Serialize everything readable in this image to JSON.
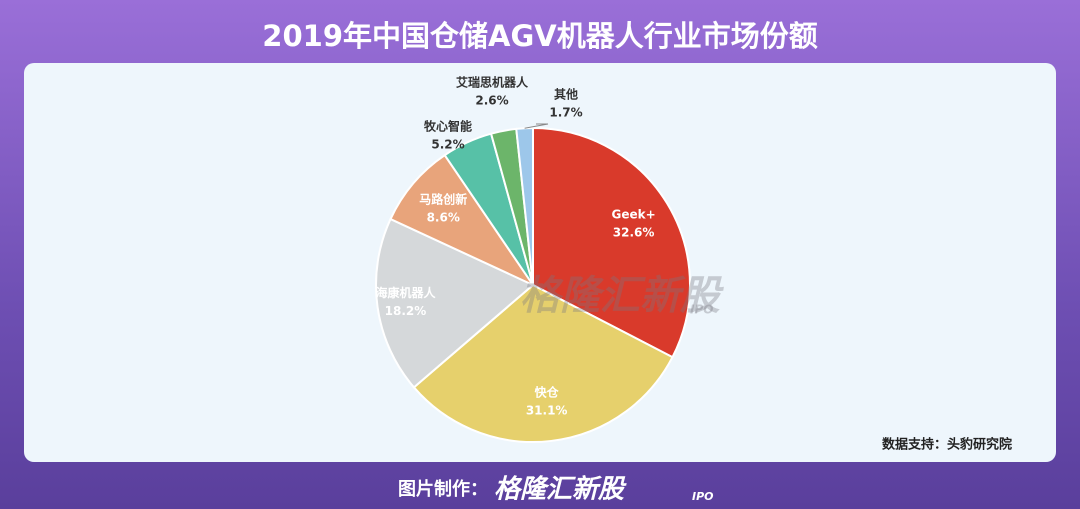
{
  "chart_data": {
    "type": "pie",
    "title": "2019年中国仓储AGV机器人行业市场份额",
    "categories": [
      "Geek+",
      "快仓",
      "海康机器人",
      "马路创新",
      "牧心智能",
      "艾瑞思机器人",
      "其他"
    ],
    "values": [
      32.6,
      31.1,
      18.2,
      8.6,
      5.2,
      2.6,
      1.7
    ],
    "value_labels": [
      "32.6%",
      "31.1%",
      "18.2%",
      "8.6%",
      "5.2%",
      "2.6%",
      "1.7%"
    ],
    "colors": [
      "#d93a2b",
      "#e6d06c",
      "#d5d8da",
      "#e8a47b",
      "#57c1a7",
      "#6cb56a",
      "#9dc7ea"
    ],
    "source": "数据支持：头豹研究院",
    "watermark": "格隆汇新股",
    "watermark_sub": "IPO",
    "footer_label": "图片制作："
  }
}
